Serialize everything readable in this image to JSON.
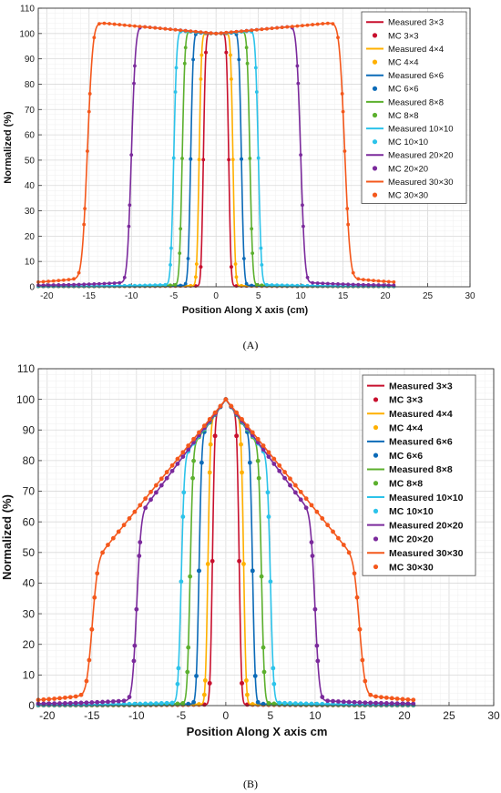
{
  "colors": {
    "3x3": "#c8102e",
    "4x4": "#ffb000",
    "6x6": "#0c6bb8",
    "8x8": "#5cb02e",
    "10x10": "#2cc3ea",
    "20x20": "#7b2a9c",
    "30x30": "#f4581c"
  },
  "captions": {
    "a": "(A)",
    "b": "(B)"
  },
  "chart_data": [
    {
      "panel": "A",
      "type": "line",
      "title": "",
      "xlabel": "Position Along X axis (cm)",
      "ylabel": "Normalized (%)",
      "xlim": [
        -21,
        30
      ],
      "ylim": [
        0,
        110
      ],
      "xticks": [
        "-20",
        "-15",
        "-10",
        "-5",
        "0",
        "5",
        "10",
        "15",
        "20",
        "25",
        "30"
      ],
      "yticks": [
        "0",
        "10",
        "20",
        "30",
        "40",
        "50",
        "60",
        "70",
        "80",
        "90",
        "100",
        "110"
      ],
      "grid": true,
      "legend": "top-right",
      "legend_entries": [
        "Measured 3×3",
        "MC 3×3",
        "Measured 4×4",
        "MC 4×4",
        "Measured 6×6",
        "MC 6×6",
        "Measured 8×8",
        "MC 8×8",
        "Measured 10×10",
        "MC 10×10",
        "Measured 20×20",
        "MC 20×20",
        "Measured 30×30",
        "MC 30×30"
      ],
      "series": [
        {
          "field": "3x3",
          "measured_name": "Measured 3×3",
          "mc_name": "MC 3×3",
          "half_width": 1.5,
          "flat": true,
          "tail": 0.3,
          "horns": 0
        },
        {
          "field": "4x4",
          "measured_name": "Measured 4×4",
          "mc_name": "MC 4×4",
          "half_width": 2.0,
          "flat": true,
          "tail": 0.4,
          "horns": 0
        },
        {
          "field": "6x6",
          "measured_name": "Measured 6×6",
          "mc_name": "MC 6×6",
          "half_width": 3.0,
          "flat": true,
          "tail": 0.5,
          "horns": 0.3
        },
        {
          "field": "8x8",
          "measured_name": "Measured 8×8",
          "mc_name": "MC 8×8",
          "half_width": 4.0,
          "flat": true,
          "tail": 0.6,
          "horns": 0.8
        },
        {
          "field": "10x10",
          "measured_name": "Measured 10×10",
          "mc_name": "MC 10×10",
          "half_width": 5.0,
          "flat": true,
          "tail": 0.7,
          "horns": 1.0
        },
        {
          "field": "20x20",
          "measured_name": "Measured 20×20",
          "mc_name": "MC 20×20",
          "half_width": 10.0,
          "flat": true,
          "tail": 1.5,
          "horns": 2.8
        },
        {
          "field": "30x30",
          "measured_name": "Measured 30×30",
          "mc_name": "MC 30×30",
          "half_width": 15.2,
          "flat": true,
          "tail": 3.0,
          "horns": 4.2
        }
      ]
    },
    {
      "panel": "B",
      "type": "line",
      "title": "",
      "xlabel": "Position Along X axis cm",
      "ylabel": "Normalized (%)",
      "xlim": [
        -21,
        30
      ],
      "ylim": [
        0,
        110
      ],
      "xticks": [
        "-20",
        "-15",
        "-10",
        "-5",
        "0",
        "5",
        "10",
        "15",
        "20",
        "25",
        "30"
      ],
      "yticks": [
        "0",
        "10",
        "20",
        "30",
        "40",
        "50",
        "60",
        "70",
        "80",
        "90",
        "100",
        "110"
      ],
      "grid": true,
      "legend": "top-right",
      "legend_entries": [
        "Measured 3×3",
        "MC 3×3",
        "Measured 4×4",
        "MC 4×4",
        "Measured 6×6",
        "MC 6×6",
        "Measured 8×8",
        "MC 8×8",
        "Measured 10×10",
        "MC 10×10",
        "Measured 20×20",
        "MC 20×20",
        "Measured 30×30",
        "MC 30×30"
      ],
      "series": [
        {
          "field": "3x3",
          "measured_name": "Measured 3×3",
          "mc_name": "MC 3×3",
          "half_width": 1.5,
          "flat": false,
          "tail": 0.3,
          "slope": 4.0
        },
        {
          "field": "4x4",
          "measured_name": "Measured 4×4",
          "mc_name": "MC 4×4",
          "half_width": 2.0,
          "flat": false,
          "tail": 0.4,
          "slope": 4.0
        },
        {
          "field": "6x6",
          "measured_name": "Measured 6×6",
          "mc_name": "MC 6×6",
          "half_width": 3.0,
          "flat": false,
          "tail": 0.5,
          "slope": 4.2
        },
        {
          "field": "8x8",
          "measured_name": "Measured 8×8",
          "mc_name": "MC 8×8",
          "half_width": 4.0,
          "flat": false,
          "tail": 0.6,
          "slope": 4.1
        },
        {
          "field": "10x10",
          "measured_name": "Measured 10×10",
          "mc_name": "MC 10×10",
          "half_width": 5.0,
          "flat": false,
          "tail": 0.8,
          "slope": 4.0
        },
        {
          "field": "20x20",
          "measured_name": "Measured 20×20",
          "mc_name": "MC 20×20",
          "half_width": 10.0,
          "flat": false,
          "tail": 1.5,
          "slope": 3.9
        },
        {
          "field": "30x30",
          "measured_name": "Measured 30×30",
          "mc_name": "MC 30×30",
          "half_width": 15.0,
          "flat": false,
          "tail": 3.0,
          "slope": 3.6
        }
      ]
    }
  ]
}
